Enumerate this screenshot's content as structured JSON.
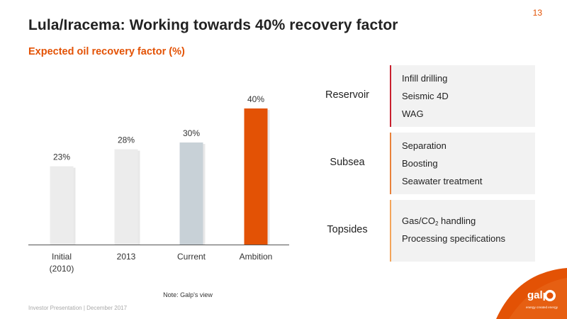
{
  "slide": {
    "page_number": "13",
    "title": "Lula/Iracema: Working towards 40% recovery factor",
    "footer": "Investor Presentation | December 2017",
    "note": "Note: Galp's view"
  },
  "chart_data": {
    "type": "bar",
    "title": "Expected oil recovery factor (%)",
    "xlabel": "",
    "ylabel": "",
    "ylim": [
      0,
      40
    ],
    "grid": false,
    "categories": [
      [
        "Initial",
        "(2010)"
      ],
      [
        "2013"
      ],
      [
        "Current"
      ],
      [
        "Ambition"
      ]
    ],
    "values": [
      23,
      28,
      30,
      40
    ],
    "data_labels": [
      "23%",
      "28%",
      "30%",
      "40%"
    ],
    "colors": [
      "#ececec",
      "#ececec",
      "#c8d1d7",
      "#e35205"
    ]
  },
  "groups": [
    {
      "label": "Reservoir",
      "items": [
        "Infill drilling",
        "Seismic 4D",
        "WAG"
      ]
    },
    {
      "label": "Subsea",
      "items": [
        "Separation",
        "Boosting",
        "Seawater treatment"
      ]
    },
    {
      "label": "Topsides",
      "items": [
        {
          "before": "Gas/CO",
          "sub": "2",
          "after": " handling"
        },
        "Processing specifications"
      ]
    }
  ],
  "logo": {
    "brand": "galp",
    "tagline": "energy created energy",
    "color": "#e35205"
  }
}
